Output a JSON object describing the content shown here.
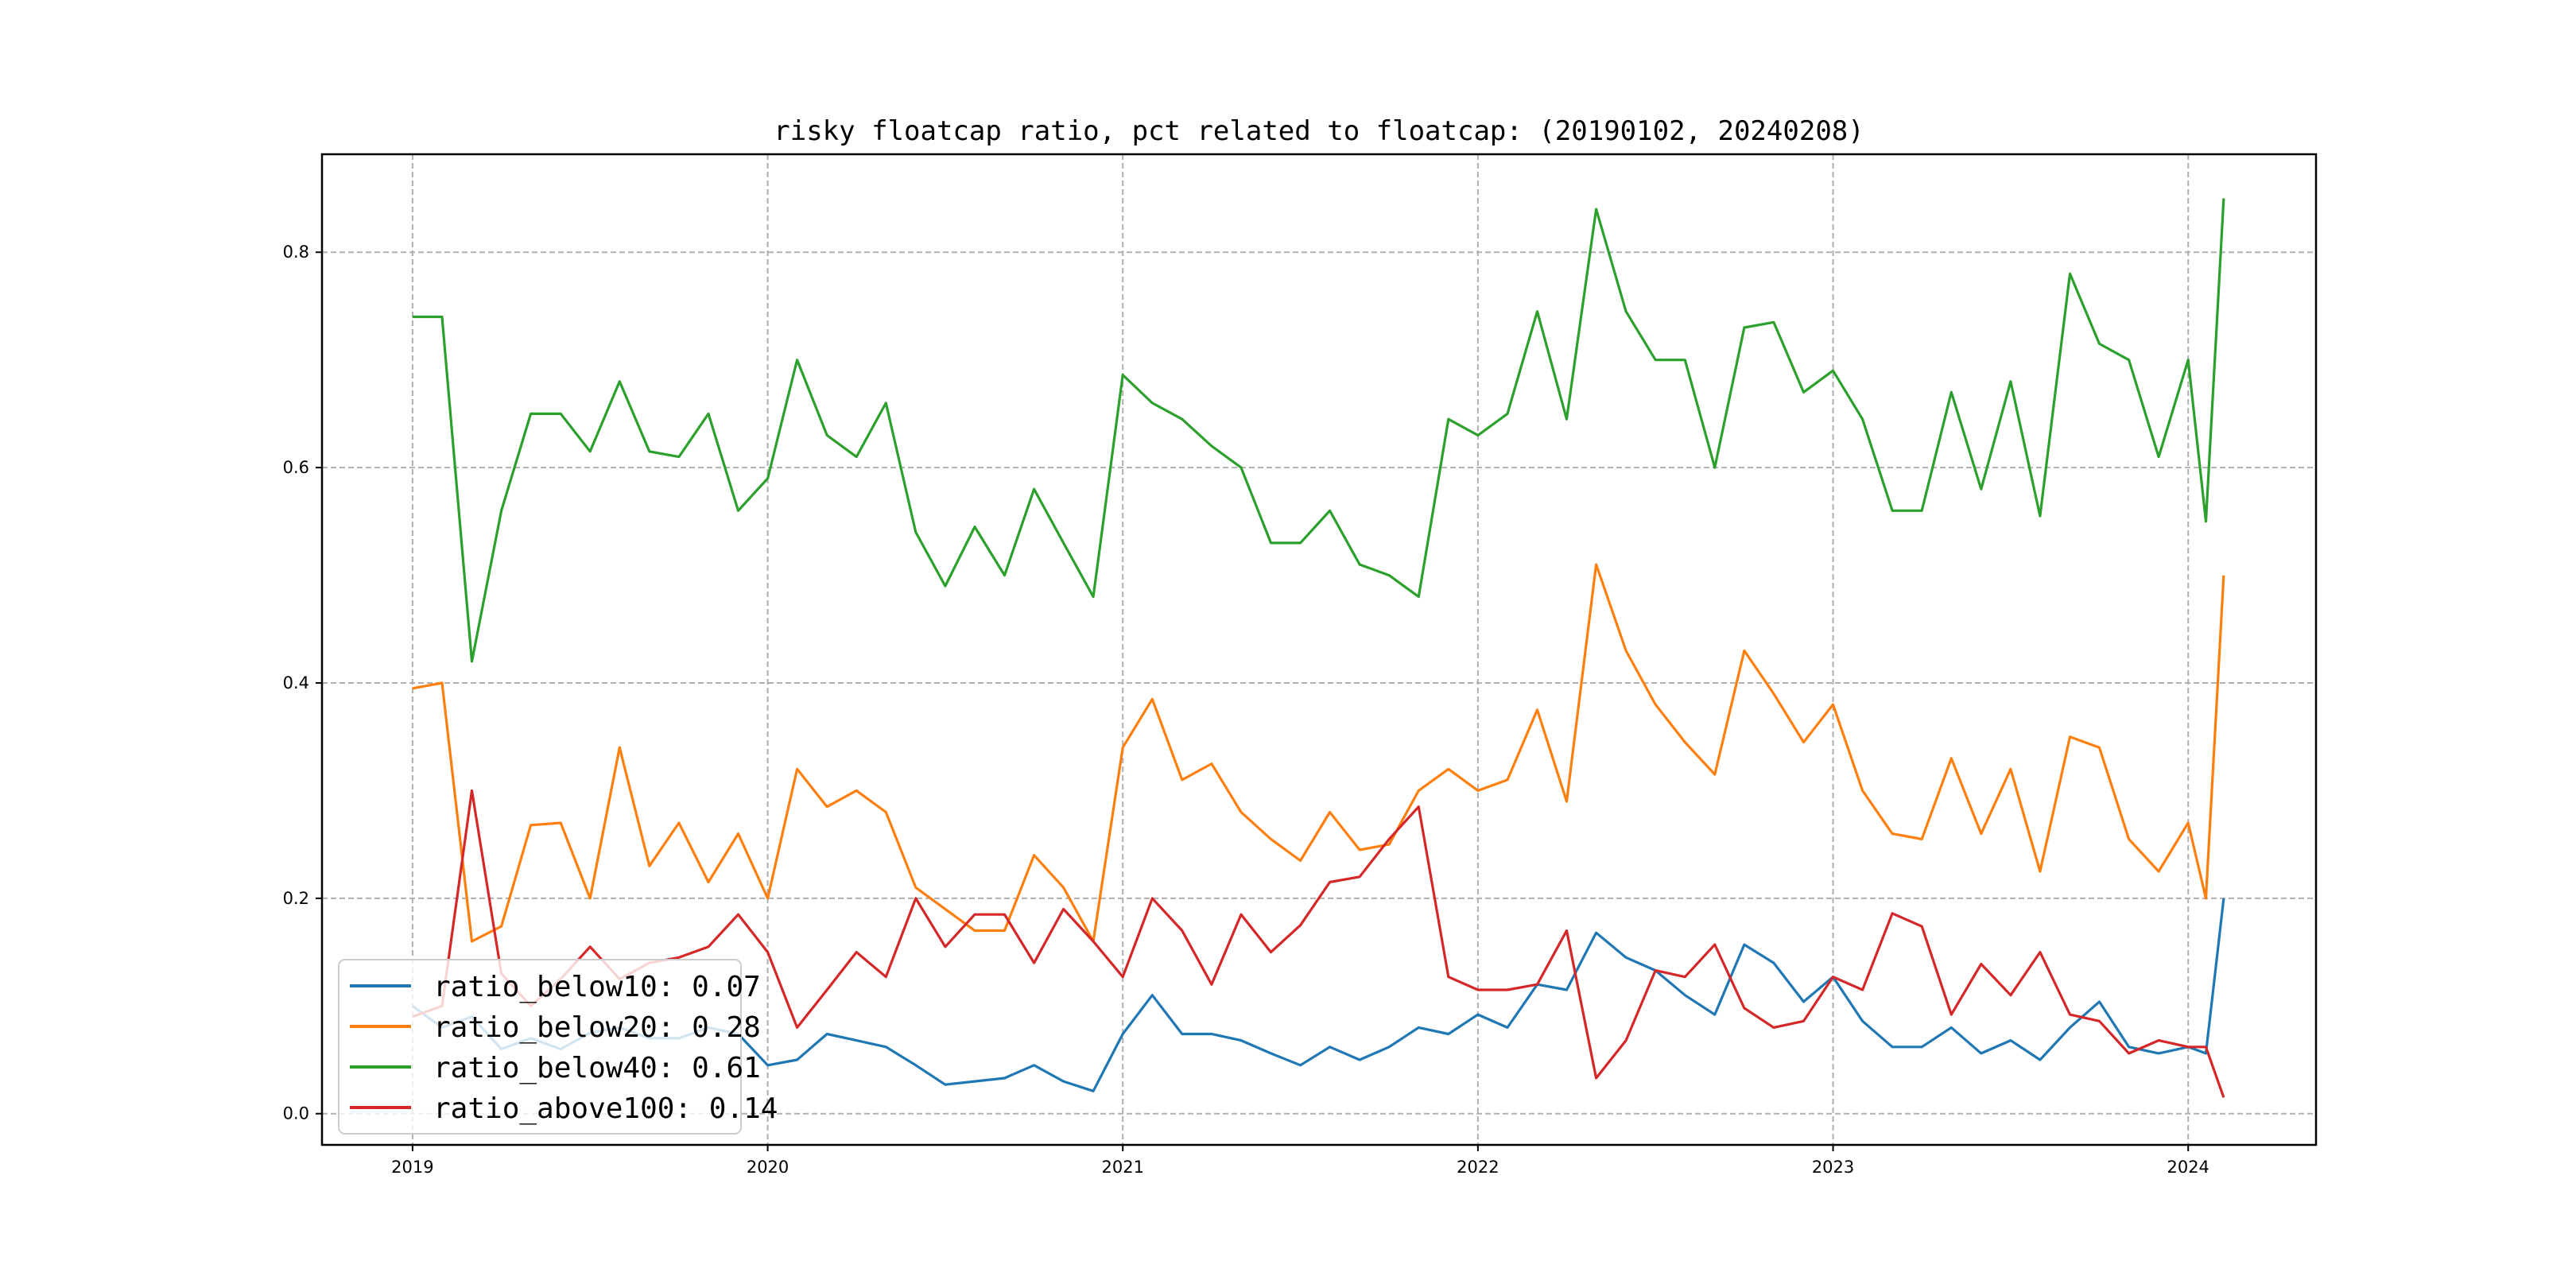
{
  "chart_data": {
    "type": "line",
    "title": "risky floatcap ratio, pct related to floatcap: (20190102, 20240208)",
    "xlabel": "",
    "ylabel": "",
    "xlim": [
      2018.745,
      2024.36
    ],
    "ylim": [
      -0.029,
      0.891
    ],
    "grid": true,
    "legend_position": "lower-left",
    "x_ticks": [
      2019,
      2020,
      2021,
      2022,
      2023,
      2024
    ],
    "x_tick_labels": [
      "2019",
      "2020",
      "2021",
      "2022",
      "2023",
      "2024"
    ],
    "y_ticks": [
      0.0,
      0.2,
      0.4,
      0.6,
      0.8
    ],
    "y_tick_labels": [
      "0.0",
      "0.2",
      "0.4",
      "0.6",
      "0.8"
    ],
    "x": [
      2019.0,
      2019.083,
      2019.167,
      2019.25,
      2019.333,
      2019.417,
      2019.5,
      2019.583,
      2019.667,
      2019.75,
      2019.833,
      2019.917,
      2020.0,
      2020.083,
      2020.167,
      2020.25,
      2020.333,
      2020.417,
      2020.5,
      2020.583,
      2020.667,
      2020.75,
      2020.833,
      2020.917,
      2021.0,
      2021.083,
      2021.167,
      2021.25,
      2021.333,
      2021.417,
      2021.5,
      2021.583,
      2021.667,
      2021.75,
      2021.833,
      2021.917,
      2022.0,
      2022.083,
      2022.167,
      2022.25,
      2022.333,
      2022.417,
      2022.5,
      2022.583,
      2022.667,
      2022.75,
      2022.833,
      2022.917,
      2023.0,
      2023.083,
      2023.167,
      2023.25,
      2023.333,
      2023.417,
      2023.5,
      2023.583,
      2023.667,
      2023.75,
      2023.833,
      2023.917,
      2024.0,
      2024.05,
      2024.1
    ],
    "series": [
      {
        "name": "ratio_below10",
        "legend": "ratio_below10: 0.07",
        "color": "#1f77b4",
        "values": [
          0.1,
          0.08,
          0.09,
          0.06,
          0.07,
          0.06,
          0.075,
          0.08,
          0.07,
          0.07,
          0.08,
          0.074,
          0.045,
          0.05,
          0.074,
          0.068,
          0.062,
          0.045,
          0.027,
          0.03,
          0.033,
          0.045,
          0.03,
          0.021,
          0.074,
          0.11,
          0.074,
          0.074,
          0.068,
          0.056,
          0.045,
          0.062,
          0.05,
          0.062,
          0.08,
          0.074,
          0.092,
          0.08,
          0.12,
          0.115,
          0.168,
          0.145,
          0.133,
          0.11,
          0.092,
          0.157,
          0.14,
          0.104,
          0.127,
          0.086,
          0.062,
          0.062,
          0.08,
          0.056,
          0.068,
          0.05,
          0.08,
          0.104,
          0.062,
          0.056,
          0.062,
          0.056,
          0.2
        ]
      },
      {
        "name": "ratio_below20",
        "legend": "ratio_below20: 0.28",
        "color": "#ff7f0e",
        "values": [
          0.395,
          0.4,
          0.16,
          0.174,
          0.268,
          0.27,
          0.2,
          0.34,
          0.23,
          0.27,
          0.215,
          0.26,
          0.2,
          0.32,
          0.285,
          0.3,
          0.28,
          0.21,
          0.19,
          0.17,
          0.17,
          0.24,
          0.21,
          0.16,
          0.34,
          0.385,
          0.31,
          0.325,
          0.28,
          0.255,
          0.235,
          0.28,
          0.245,
          0.25,
          0.3,
          0.32,
          0.3,
          0.31,
          0.375,
          0.29,
          0.51,
          0.43,
          0.38,
          0.345,
          0.315,
          0.43,
          0.39,
          0.345,
          0.38,
          0.3,
          0.26,
          0.255,
          0.33,
          0.26,
          0.32,
          0.225,
          0.35,
          0.34,
          0.255,
          0.225,
          0.27,
          0.2,
          0.5
        ]
      },
      {
        "name": "ratio_below40",
        "legend": "ratio_below40: 0.61",
        "color": "#2ca02c",
        "values": [
          0.74,
          0.74,
          0.42,
          0.56,
          0.65,
          0.65,
          0.615,
          0.68,
          0.615,
          0.61,
          0.65,
          0.56,
          0.59,
          0.7,
          0.63,
          0.61,
          0.66,
          0.54,
          0.49,
          0.545,
          0.5,
          0.58,
          0.53,
          0.48,
          0.686,
          0.66,
          0.645,
          0.62,
          0.6,
          0.53,
          0.53,
          0.56,
          0.51,
          0.5,
          0.48,
          0.645,
          0.63,
          0.65,
          0.745,
          0.645,
          0.84,
          0.745,
          0.7,
          0.7,
          0.6,
          0.73,
          0.735,
          0.67,
          0.69,
          0.645,
          0.56,
          0.56,
          0.67,
          0.58,
          0.68,
          0.555,
          0.78,
          0.715,
          0.7,
          0.61,
          0.7,
          0.55,
          0.85
        ]
      },
      {
        "name": "ratio_above100",
        "legend": "ratio_above100: 0.14",
        "color": "#d62728",
        "values": [
          0.09,
          0.1,
          0.3,
          0.13,
          0.1,
          0.125,
          0.155,
          0.125,
          0.14,
          0.145,
          0.155,
          0.185,
          0.15,
          0.08,
          0.115,
          0.15,
          0.127,
          0.2,
          0.155,
          0.185,
          0.185,
          0.14,
          0.19,
          0.16,
          0.127,
          0.2,
          0.17,
          0.12,
          0.185,
          0.15,
          0.175,
          0.215,
          0.22,
          0.255,
          0.285,
          0.127,
          0.115,
          0.115,
          0.12,
          0.17,
          0.033,
          0.068,
          0.133,
          0.127,
          0.157,
          0.098,
          0.08,
          0.086,
          0.127,
          0.115,
          0.186,
          0.174,
          0.092,
          0.139,
          0.11,
          0.15,
          0.092,
          0.086,
          0.056,
          0.068,
          0.062,
          0.062,
          0.015
        ]
      }
    ]
  }
}
